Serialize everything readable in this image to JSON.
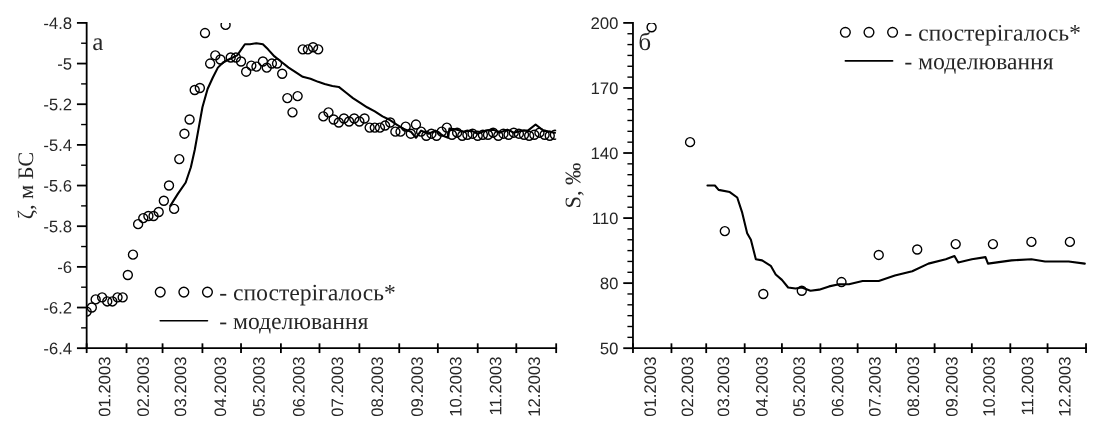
{
  "chart_data": [
    {
      "type": "scatter",
      "ylabel": "ζ, м БС",
      "annotations": [
        "а"
      ],
      "legend": "bottom",
      "grid": false,
      "xlim": [
        "2003-01-01",
        "2004-01-01"
      ],
      "ylim": [
        -6.4,
        -4.8
      ],
      "xticks": [
        {
          "value": "2003-01-01",
          "label": null
        },
        {
          "value": "2003-02-01",
          "label": null
        },
        {
          "value": "2003-03-01",
          "label": null
        },
        {
          "value": "2003-04-01",
          "label": null
        },
        {
          "value": "2003-05-01",
          "label": null
        },
        {
          "value": "2003-06-01",
          "label": null
        },
        {
          "value": "2003-07-01",
          "label": null
        },
        {
          "value": "2003-08-01",
          "label": null
        },
        {
          "value": "2003-09-01",
          "label": null
        },
        {
          "value": "2003-10-01",
          "label": null
        },
        {
          "value": "2003-11-01",
          "label": null
        },
        {
          "value": "2003-12-01",
          "label": null
        },
        {
          "value": "2004-01-01",
          "label": null
        },
        {
          "value": "2003-01-16",
          "label": "01.2003"
        },
        {
          "value": "2003-02-15",
          "label": "02.2003"
        },
        {
          "value": "2003-03-16",
          "label": "03.2003"
        },
        {
          "value": "2003-04-16",
          "label": "04.2003"
        },
        {
          "value": "2003-05-16",
          "label": "05.2003"
        },
        {
          "value": "2003-06-16",
          "label": "06.2003"
        },
        {
          "value": "2003-07-16",
          "label": "07.2003"
        },
        {
          "value": "2003-08-16",
          "label": "08.2003"
        },
        {
          "value": "2003-09-16",
          "label": "09.2003"
        },
        {
          "value": "2003-10-16",
          "label": "10.2003"
        },
        {
          "value": "2003-11-16",
          "label": "11.2003"
        },
        {
          "value": "2003-12-16",
          "label": "12.2003"
        }
      ],
      "yticks": [
        {
          "value": -6.4,
          "label": "-6.4"
        },
        {
          "value": -6.2,
          "label": "-6.2"
        },
        {
          "value": -6.0,
          "label": "-6"
        },
        {
          "value": -5.8,
          "label": "-5.8"
        },
        {
          "value": -5.6,
          "label": "-5.6"
        },
        {
          "value": -5.4,
          "label": "-5.4"
        },
        {
          "value": -5.2,
          "label": "-5.2"
        },
        {
          "value": -5.0,
          "label": "-5"
        },
        {
          "value": -4.8,
          "label": "-4.8"
        },
        {
          "value": -6.3,
          "label": null
        },
        {
          "value": -6.1,
          "label": null
        },
        {
          "value": -5.9,
          "label": null
        },
        {
          "value": -5.7,
          "label": null
        },
        {
          "value": -5.5,
          "label": null
        },
        {
          "value": -5.3,
          "label": null
        },
        {
          "value": -5.1,
          "label": null
        },
        {
          "value": -4.9,
          "label": null
        }
      ],
      "series": [
        {
          "name": "- спостерігалось*",
          "marker": "circle",
          "color": "#000000",
          "x": [
            "2003-01-01",
            "2003-01-05",
            "2003-01-08",
            "2003-01-13",
            "2003-01-17",
            "2003-01-21",
            "2003-01-25",
            "2003-01-29",
            "2003-02-02",
            "2003-02-06",
            "2003-02-10",
            "2003-02-14",
            "2003-02-18",
            "2003-02-22",
            "2003-02-26",
            "2003-03-02",
            "2003-03-06",
            "2003-03-10",
            "2003-03-14",
            "2003-03-18",
            "2003-03-22",
            "2003-03-26",
            "2003-03-30",
            "2003-04-03",
            "2003-04-07",
            "2003-04-11",
            "2003-04-15",
            "2003-04-19",
            "2003-04-23",
            "2003-04-27",
            "2003-05-01",
            "2003-05-05",
            "2003-05-09",
            "2003-05-13",
            "2003-05-18",
            "2003-05-21",
            "2003-05-25",
            "2003-05-29",
            "2003-06-02",
            "2003-06-06",
            "2003-06-10",
            "2003-06-14",
            "2003-06-18",
            "2003-06-22",
            "2003-06-26",
            "2003-06-30",
            "2003-07-04",
            "2003-07-08",
            "2003-07-12",
            "2003-07-16",
            "2003-07-20",
            "2003-07-24",
            "2003-07-28",
            "2003-08-01",
            "2003-08-05",
            "2003-08-09",
            "2003-08-13",
            "2003-08-17",
            "2003-08-21",
            "2003-08-25",
            "2003-08-29",
            "2003-09-02",
            "2003-09-06",
            "2003-09-10",
            "2003-09-14",
            "2003-09-18",
            "2003-09-22",
            "2003-09-26",
            "2003-09-30",
            "2003-10-04",
            "2003-10-08",
            "2003-10-12",
            "2003-10-16",
            "2003-10-20",
            "2003-10-24",
            "2003-10-28",
            "2003-11-01",
            "2003-11-05",
            "2003-11-09",
            "2003-11-13",
            "2003-11-17",
            "2003-11-21",
            "2003-11-25",
            "2003-11-29",
            "2003-12-03",
            "2003-12-07",
            "2003-12-11",
            "2003-12-15",
            "2003-12-19",
            "2003-12-23",
            "2003-12-27",
            "2003-12-31"
          ],
          "values": [
            -6.22,
            -6.2,
            -6.16,
            -6.15,
            -6.17,
            -6.17,
            -6.15,
            -6.15,
            -6.04,
            -5.94,
            -5.79,
            -5.76,
            -5.75,
            -5.75,
            -5.73,
            -5.675,
            -5.6,
            -5.715,
            -5.47,
            -5.345,
            -5.275,
            -5.13,
            -5.12,
            -4.85,
            -5.0,
            -4.96,
            -4.98,
            -4.81,
            -4.97,
            -4.97,
            -4.99,
            -5.04,
            -5.01,
            -5.015,
            -4.99,
            -5.02,
            -5.0,
            -5.0,
            -5.05,
            -5.17,
            -5.24,
            -5.16,
            -4.93,
            -4.93,
            -4.92,
            -4.93,
            -5.26,
            -5.24,
            -5.275,
            -5.29,
            -5.27,
            -5.285,
            -5.27,
            -5.285,
            -5.27,
            -5.315,
            -5.315,
            -5.315,
            -5.305,
            -5.29,
            -5.335,
            -5.335,
            -5.31,
            -5.345,
            -5.3,
            -5.335,
            -5.355,
            -5.345,
            -5.355,
            -5.335,
            -5.315,
            -5.35,
            -5.34,
            -5.355,
            -5.35,
            -5.345,
            -5.355,
            -5.35,
            -5.35,
            -5.34,
            -5.355,
            -5.345,
            -5.35,
            -5.34,
            -5.345,
            -5.35,
            -5.355,
            -5.35,
            -5.34,
            -5.35,
            -5.355,
            -5.35
          ]
        },
        {
          "name": "- моделювання",
          "type": "line",
          "color": "#000000",
          "marker": "none",
          "line_style": "solid",
          "x": [
            "2003-03-07",
            "2003-03-13",
            "2003-03-19",
            "2003-03-23",
            "2003-03-26",
            "2003-03-29",
            "2003-04-01",
            "2003-04-05",
            "2003-04-09",
            "2003-04-13",
            "2003-04-17",
            "2003-04-23",
            "2003-04-28",
            "2003-05-04",
            "2003-05-08",
            "2003-05-13",
            "2003-05-18",
            "2003-05-22",
            "2003-05-27",
            "2003-06-02",
            "2003-06-07",
            "2003-06-13",
            "2003-06-18",
            "2003-06-24",
            "2003-06-30",
            "2003-07-05",
            "2003-07-11",
            "2003-07-16",
            "2003-07-22",
            "2003-07-27",
            "2003-08-02",
            "2003-08-07",
            "2003-08-13",
            "2003-08-19",
            "2003-08-24",
            "2003-08-30",
            "2003-09-04",
            "2003-09-10",
            "2003-09-14",
            "2003-09-18",
            "2003-09-24",
            "2003-09-29",
            "2003-10-05",
            "2003-10-09",
            "2003-10-10",
            "2003-10-16",
            "2003-10-21",
            "2003-10-27",
            "2003-11-01",
            "2003-11-07",
            "2003-11-13",
            "2003-11-18",
            "2003-11-24",
            "2003-11-29",
            "2003-12-05",
            "2003-12-10",
            "2003-12-16",
            "2003-12-22",
            "2003-12-27",
            "2003-12-31"
          ],
          "values": [
            -5.7,
            -5.64,
            -5.585,
            -5.51,
            -5.425,
            -5.32,
            -5.215,
            -5.125,
            -5.07,
            -5.02,
            -4.995,
            -4.975,
            -4.96,
            -4.905,
            -4.905,
            -4.9,
            -4.905,
            -4.93,
            -4.965,
            -4.995,
            -5.02,
            -5.045,
            -5.065,
            -5.075,
            -5.09,
            -5.1,
            -5.11,
            -5.115,
            -5.145,
            -5.17,
            -5.195,
            -5.215,
            -5.235,
            -5.26,
            -5.275,
            -5.3,
            -5.32,
            -5.335,
            -5.365,
            -5.33,
            -5.345,
            -5.33,
            -5.355,
            -5.365,
            -5.32,
            -5.325,
            -5.335,
            -5.33,
            -5.345,
            -5.33,
            -5.325,
            -5.34,
            -5.325,
            -5.34,
            -5.33,
            -5.33,
            -5.3,
            -5.33,
            -5.335,
            -5.34
          ]
        }
      ]
    },
    {
      "type": "scatter",
      "ylabel": "S, ‰",
      "annotations": [
        "б"
      ],
      "legend": "top right",
      "grid": false,
      "xlim": [
        "2003-01-01",
        "2004-01-01"
      ],
      "ylim": [
        50,
        200
      ],
      "xticks": [
        {
          "value": "2003-01-01",
          "label": null
        },
        {
          "value": "2003-02-01",
          "label": null
        },
        {
          "value": "2003-03-01",
          "label": null
        },
        {
          "value": "2003-04-01",
          "label": null
        },
        {
          "value": "2003-05-01",
          "label": null
        },
        {
          "value": "2003-06-01",
          "label": null
        },
        {
          "value": "2003-07-01",
          "label": null
        },
        {
          "value": "2003-08-01",
          "label": null
        },
        {
          "value": "2003-09-01",
          "label": null
        },
        {
          "value": "2003-10-01",
          "label": null
        },
        {
          "value": "2003-11-01",
          "label": null
        },
        {
          "value": "2003-12-01",
          "label": null
        },
        {
          "value": "2004-01-01",
          "label": null
        },
        {
          "value": "2003-01-16",
          "label": "01.2003"
        },
        {
          "value": "2003-02-15",
          "label": "02.2003"
        },
        {
          "value": "2003-03-16",
          "label": "03.2003"
        },
        {
          "value": "2003-04-16",
          "label": "04.2003"
        },
        {
          "value": "2003-05-16",
          "label": "05.2003"
        },
        {
          "value": "2003-06-16",
          "label": "06.2003"
        },
        {
          "value": "2003-07-16",
          "label": "07.2003"
        },
        {
          "value": "2003-08-16",
          "label": "08.2003"
        },
        {
          "value": "2003-09-16",
          "label": "09.2003"
        },
        {
          "value": "2003-10-16",
          "label": "10.2003"
        },
        {
          "value": "2003-11-16",
          "label": "11.2003"
        },
        {
          "value": "2003-12-16",
          "label": "12.2003"
        }
      ],
      "yticks": [
        50,
        80,
        110,
        140,
        170,
        200,
        {
          "value": 55,
          "label": null
        },
        {
          "value": 60,
          "label": null
        },
        {
          "value": 65,
          "label": null
        },
        {
          "value": 70,
          "label": null
        },
        {
          "value": 75,
          "label": null
        },
        {
          "value": 85,
          "label": null
        },
        {
          "value": 90,
          "label": null
        },
        {
          "value": 95,
          "label": null
        },
        {
          "value": 100,
          "label": null
        },
        {
          "value": 105,
          "label": null
        },
        {
          "value": 115,
          "label": null
        },
        {
          "value": 120,
          "label": null
        },
        {
          "value": 125,
          "label": null
        },
        {
          "value": 130,
          "label": null
        },
        {
          "value": 135,
          "label": null
        },
        {
          "value": 145,
          "label": null
        },
        {
          "value": 150,
          "label": null
        },
        {
          "value": 155,
          "label": null
        },
        {
          "value": 160,
          "label": null
        },
        {
          "value": 165,
          "label": null
        },
        {
          "value": 175,
          "label": null
        },
        {
          "value": 180,
          "label": null
        },
        {
          "value": 185,
          "label": null
        },
        {
          "value": 190,
          "label": null
        },
        {
          "value": 195,
          "label": null
        }
      ],
      "series": [
        {
          "name": "- спостерігалось*",
          "marker": "circle",
          "color": "#000000",
          "x": [
            "2003-01-16",
            "2003-02-16",
            "2003-03-16",
            "2003-04-16",
            "2003-05-17",
            "2003-06-18",
            "2003-07-18",
            "2003-08-18",
            "2003-09-18",
            "2003-10-18",
            "2003-11-18",
            "2003-12-19"
          ],
          "values": [
            198,
            145,
            104,
            75,
            76.5,
            80.5,
            93,
            95.5,
            98,
            98,
            99,
            99
          ]
        },
        {
          "name": "- моделювання",
          "type": "line",
          "color": "#000000",
          "marker": "none",
          "line_style": "solid",
          "x": [
            "2003-03-02",
            "2003-03-08",
            "2003-03-11",
            "2003-03-20",
            "2003-03-26",
            "2003-03-30",
            "2003-04-03",
            "2003-04-06",
            "2003-04-10",
            "2003-04-15",
            "2003-04-22",
            "2003-04-26",
            "2003-05-01",
            "2003-05-06",
            "2003-05-12",
            "2003-05-17",
            "2003-05-24",
            "2003-05-31",
            "2003-06-08",
            "2003-06-16",
            "2003-06-24",
            "2003-07-05",
            "2003-07-18",
            "2003-07-31",
            "2003-08-14",
            "2003-08-27",
            "2003-09-10",
            "2003-09-17",
            "2003-09-20",
            "2003-10-01",
            "2003-10-12",
            "2003-10-14",
            "2003-11-02",
            "2003-11-18",
            "2003-11-29",
            "2003-12-18",
            "2003-12-31"
          ],
          "values": [
            125,
            125,
            123,
            122,
            119.5,
            112.5,
            103,
            100,
            91,
            90.5,
            88,
            84,
            81.5,
            78,
            77.5,
            78,
            76.5,
            77,
            78.5,
            79.5,
            79.5,
            81,
            81,
            83.5,
            85.5,
            89,
            91,
            92.5,
            89.5,
            91,
            92,
            89,
            90.5,
            91,
            90,
            90,
            89
          ]
        }
      ]
    }
  ]
}
